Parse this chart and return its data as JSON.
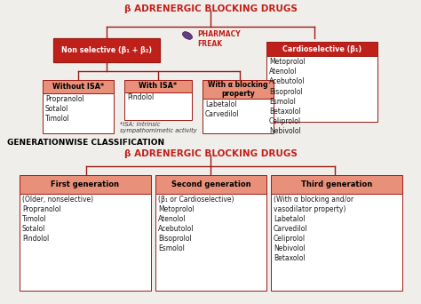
{
  "title1": "β ADRENERGIC BLOCKING DRUGS",
  "title2": "GENERATIONWISE CLASSIFICATION",
  "title3": "β ADRENERGIC BLOCKING DRUGS",
  "bg_color": "#f0eeeb",
  "dark_red": "#c0201a",
  "salmon": "#e8907a",
  "white": "#ffffff",
  "line_color": "#9b1a14",
  "text_dark": "#1a1a1a",
  "box1_title": "Non selective (β₁ + β₂)",
  "box2_title": "Cardioselective (β₁)",
  "box2_drugs": [
    "Metoprolol",
    "Atenolol",
    "Acebutolol",
    "Bisoprolol",
    "Esmolol",
    "Betaxolol",
    "Celiprolol",
    "Nebivolol"
  ],
  "box3_title": "Without ISA*",
  "box3_drugs": [
    "Propranolol",
    "Sotalol",
    "Timolol"
  ],
  "box4_title": "With ISA*",
  "box4_drugs": [
    "Pindolol"
  ],
  "box4_note": "*ISA: Intrinsic\nsympathomimetic activity",
  "box5_title": "With α blocking\nproperty",
  "box5_drugs": [
    "Labetalol",
    "Carvedilol"
  ],
  "gen1_title": "First generation",
  "gen1_sub": "(Older, nonselective)",
  "gen1_drugs": [
    "Propranolol",
    "Timolol",
    "Sotalol",
    "Pindolol"
  ],
  "gen2_title": "Second generation",
  "gen2_sub": "(β₁ or Cardioselective)",
  "gen2_drugs": [
    "Metoprolol",
    "Atenolol",
    "Acebutolol",
    "Bisoprolol",
    "Esmolol"
  ],
  "gen3_title": "Third generation",
  "gen3_sub": "(With α blocking and/or\nvasodilator property)",
  "gen3_drugs": [
    "Labetalol",
    "Carvedilol",
    "Celiprolol",
    "Nebivolol",
    "Betaxolol"
  ]
}
